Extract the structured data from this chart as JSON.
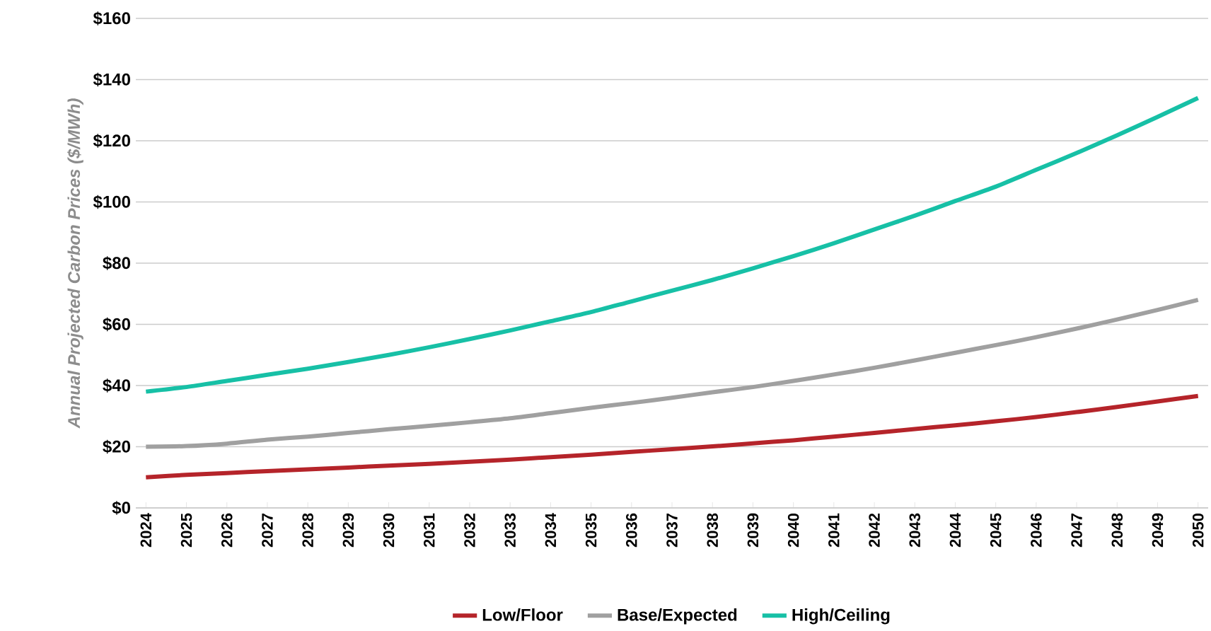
{
  "chart_data": {
    "type": "line",
    "ylabel": "Annual Projected Carbon Prices ($/MWh)",
    "categories": [
      "2024",
      "2025",
      "2026",
      "2027",
      "2028",
      "2029",
      "2030",
      "2031",
      "2032",
      "2033",
      "2034",
      "2035",
      "2036",
      "2037",
      "2038",
      "2039",
      "2040",
      "2041",
      "2042",
      "2043",
      "2044",
      "2045",
      "2046",
      "2047",
      "2048",
      "2049",
      "2050"
    ],
    "series": [
      {
        "name": "Low/Floor",
        "color": "#b5242a",
        "values": [
          10,
          10.8,
          11.4,
          12,
          12.6,
          13.2,
          13.8,
          14.4,
          15.1,
          15.8,
          16.6,
          17.4,
          18.3,
          19.2,
          20.1,
          21.1,
          22.1,
          23.3,
          24.5,
          25.8,
          27,
          28.3,
          29.7,
          31.3,
          33,
          34.8,
          36.6
        ]
      },
      {
        "name": "Base/Expected",
        "color": "#a0a0a0",
        "values": [
          20,
          20.2,
          21,
          22.3,
          23.3,
          24.5,
          25.7,
          26.8,
          28,
          29.3,
          31,
          32.7,
          34.3,
          36,
          37.8,
          39.5,
          41.5,
          43.6,
          45.8,
          48.2,
          50.7,
          53.2,
          55.8,
          58.6,
          61.6,
          64.7,
          68
        ]
      },
      {
        "name": "High/Ceiling",
        "color": "#17c0a6",
        "values": [
          38,
          39.5,
          41.5,
          43.5,
          45.5,
          47.7,
          50,
          52.5,
          55.2,
          58,
          61,
          64,
          67.5,
          71,
          74.5,
          78.3,
          82.3,
          86.5,
          91,
          95.5,
          100.3,
          105,
          110.5,
          116,
          121.8,
          127.8,
          134
        ]
      }
    ],
    "ylim": [
      0,
      160
    ],
    "yticks": [
      {
        "value": 0,
        "label": "$0"
      },
      {
        "value": 20,
        "label": "$20"
      },
      {
        "value": 40,
        "label": "$40"
      },
      {
        "value": 60,
        "label": "$60"
      },
      {
        "value": 80,
        "label": "$80"
      },
      {
        "value": 100,
        "label": "$100"
      },
      {
        "value": 120,
        "label": "$120"
      },
      {
        "value": 140,
        "label": "$140"
      },
      {
        "value": 160,
        "label": "$160"
      }
    ],
    "grid": "y",
    "legend": "bottom",
    "marker": "none",
    "line_style": "solid"
  }
}
